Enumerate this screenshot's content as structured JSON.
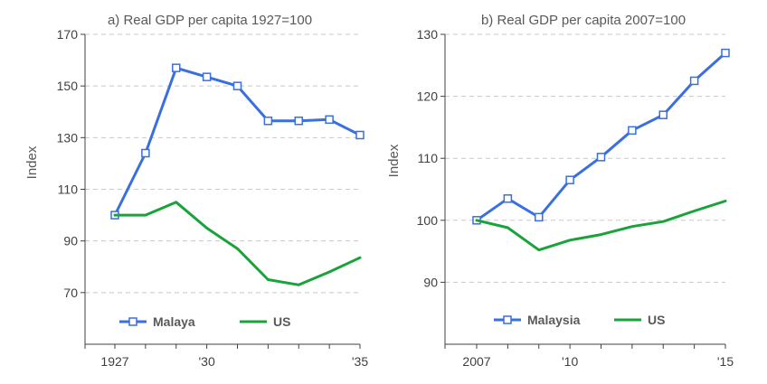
{
  "chart_data": [
    {
      "type": "line",
      "title": "a) Real GDP per capita 1927=100",
      "ylabel": "Index",
      "xlim": [
        1927,
        1935
      ],
      "ylim": [
        50,
        170
      ],
      "yticks": [
        70,
        90,
        110,
        130,
        150,
        170
      ],
      "xtick_labels": [
        {
          "x": 1927,
          "label": "1927"
        },
        {
          "x": 1930,
          "label": "'30"
        },
        {
          "x": 1935,
          "label": "'35"
        }
      ],
      "grid": true,
      "legend_position": "bottom-left",
      "x": [
        1927,
        1928,
        1929,
        1930,
        1931,
        1932,
        1933,
        1934,
        1935
      ],
      "series": [
        {
          "name": "Malaya",
          "color": "#3a6fe0",
          "markers": true,
          "values": [
            100,
            124,
            157,
            153.5,
            150,
            136.5,
            136.5,
            137,
            131
          ]
        },
        {
          "name": "US",
          "color": "#1aa33a",
          "markers": false,
          "values": [
            100,
            100,
            105,
            95,
            87,
            75,
            73,
            78,
            83.5
          ]
        }
      ]
    },
    {
      "type": "line",
      "title": "b) Real GDP per capita 2007=100",
      "ylabel": "Index",
      "xlim": [
        2007,
        2015
      ],
      "ylim": [
        80,
        130
      ],
      "yticks": [
        90,
        100,
        110,
        120,
        130
      ],
      "xtick_labels": [
        {
          "x": 2007,
          "label": "2007"
        },
        {
          "x": 2010,
          "label": "'10"
        },
        {
          "x": 2015,
          "label": "'15"
        }
      ],
      "grid": true,
      "legend_position": "bottom-left",
      "x": [
        2007,
        2008,
        2009,
        2010,
        2011,
        2012,
        2013,
        2014,
        2015
      ],
      "series": [
        {
          "name": "Malaysia",
          "color": "#3a6fe0",
          "markers": true,
          "values": [
            100,
            103.5,
            100.5,
            106.5,
            110.2,
            114.5,
            117,
            122.5,
            127
          ]
        },
        {
          "name": "US",
          "color": "#1aa33a",
          "markers": false,
          "values": [
            100,
            98.8,
            95.2,
            96.8,
            97.7,
            99,
            99.8,
            101.5,
            103.1
          ]
        }
      ]
    }
  ]
}
